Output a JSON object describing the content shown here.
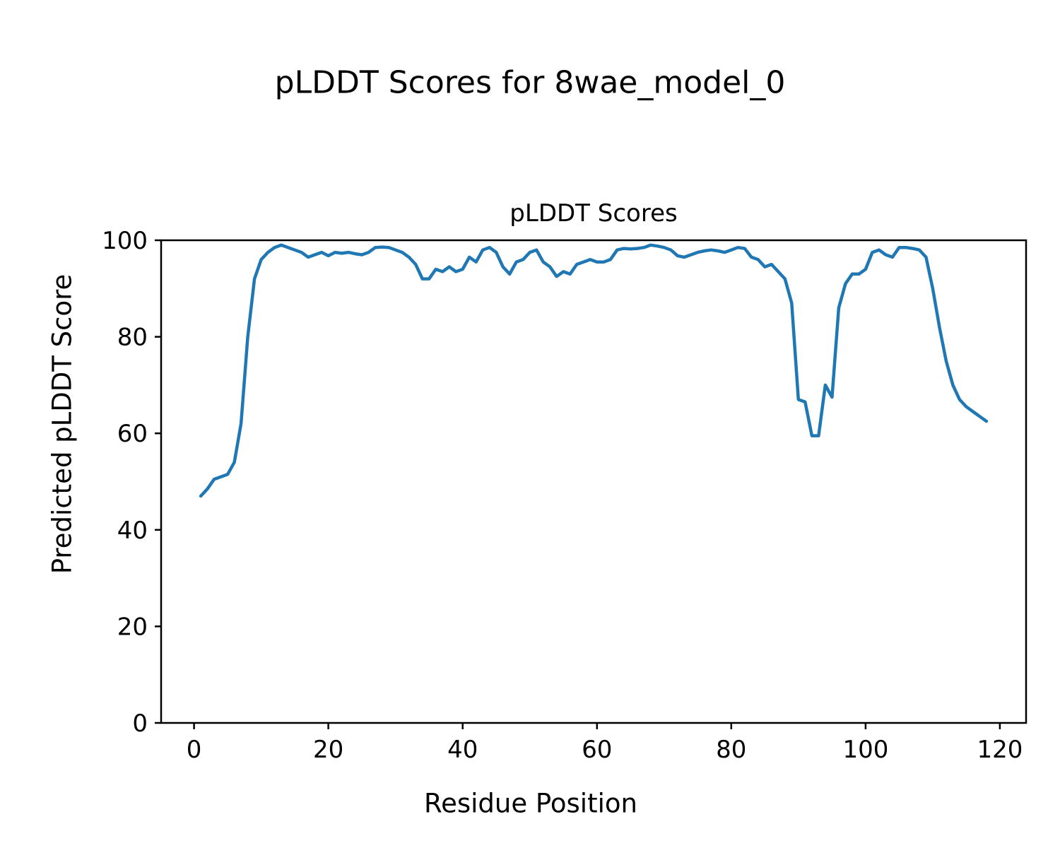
{
  "figure": {
    "suptitle": "pLDDT Scores for 8wae_model_0",
    "axes_title": "pLDDT Scores",
    "xlabel": "Residue Position",
    "ylabel": "Predicted pLDDT Score"
  },
  "chart_data": {
    "type": "line",
    "title": "pLDDT Scores",
    "xlabel": "Residue Position",
    "ylabel": "Predicted pLDDT Score",
    "x_start": 1,
    "x_step": 1,
    "values": [
      47,
      48.5,
      50.5,
      51,
      51.5,
      54,
      62,
      80,
      92,
      96,
      97.5,
      98.5,
      99,
      98.5,
      98,
      97.5,
      96.5,
      97,
      97.5,
      96.8,
      97.5,
      97.3,
      97.5,
      97.2,
      97,
      97.5,
      98.5,
      98.6,
      98.5,
      98,
      97.5,
      96.5,
      95,
      92,
      92,
      94,
      93.5,
      94.5,
      93.5,
      94,
      96.5,
      95.5,
      98,
      98.5,
      97.5,
      94.5,
      93,
      95.5,
      96,
      97.5,
      98,
      95.5,
      94.5,
      92.5,
      93.5,
      93,
      95,
      95.5,
      96,
      95.5,
      95.5,
      96,
      98,
      98.3,
      98.2,
      98.3,
      98.5,
      99,
      98.8,
      98.5,
      98,
      96.8,
      96.5,
      97,
      97.5,
      97.8,
      98,
      97.8,
      97.5,
      98,
      98.5,
      98.3,
      96.5,
      96,
      94.5,
      95,
      93.5,
      92,
      87,
      67,
      66.5,
      59.5,
      59.5,
      70,
      67.5,
      86,
      91,
      93,
      93,
      94,
      97.5,
      98,
      97,
      96.5,
      98.5,
      98.5,
      98.3,
      98,
      96.5,
      90,
      82,
      75,
      70,
      67,
      65.5,
      64.5,
      63.5,
      62.5
    ],
    "x_ticks": [
      0,
      20,
      40,
      60,
      80,
      100,
      120
    ],
    "y_ticks": [
      0,
      20,
      40,
      60,
      80,
      100
    ],
    "xlim": [
      -4.9,
      123.9
    ],
    "ylim": [
      0,
      100
    ],
    "grid": false,
    "line_color": "#1f77b4",
    "axis_color": "#000000"
  }
}
